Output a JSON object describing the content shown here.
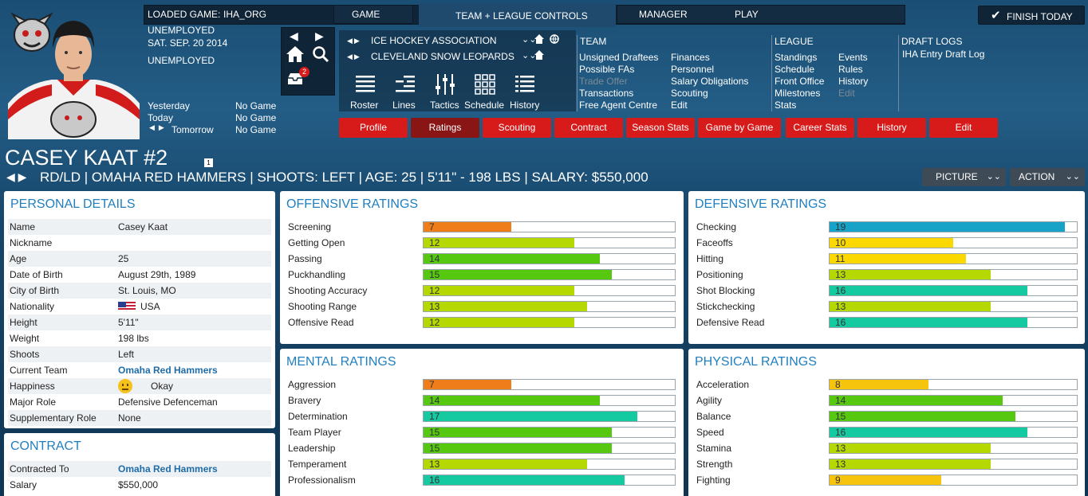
{
  "colors": {
    "accent": "#d71a1a",
    "active_tab": "#8a1515",
    "link": "#1e6ca8",
    "panel_title": "#1f7fbf",
    "orange": "#ef7d1a",
    "yellowgreen": "#b5d900",
    "green": "#55c80f",
    "teal": "#15c9a0",
    "blue": "#17a3c7",
    "yellow": "#fbd800",
    "amber": "#f6c40c"
  },
  "topbar": {
    "loaded_game_label": "LOADED GAME:",
    "loaded_game_value": "IHA_ORG",
    "game": "GAME",
    "team_league_controls": "TEAM + LEAGUE CONTROLS",
    "manager": "MANAGER",
    "play": "PLAY",
    "finish_today": "FINISH TODAY"
  },
  "manager_info": {
    "status1": "UNEMPLOYED",
    "date": "SAT. SEP. 20 2014",
    "status2": "UNEMPLOYED",
    "schedule": [
      {
        "label": "Yesterday",
        "value": "No Game"
      },
      {
        "label": "Today",
        "value": "No Game"
      },
      {
        "label": "Tomorrow",
        "value": "No Game"
      }
    ]
  },
  "quick_icons": {
    "inbox_badge": "2"
  },
  "leagues": {
    "league_name": "ICE HOCKEY ASSOCIATION",
    "team_name": "CLEVELAND SNOW LEOPARDS"
  },
  "toolbar": [
    "Roster",
    "Lines",
    "Tactics",
    "Schedule",
    "History"
  ],
  "menus": {
    "team_title": "TEAM",
    "team_col1": [
      "Unsigned Draftees",
      "Possible FAs",
      "Trade Offer",
      "Transactions",
      "Free Agent Centre"
    ],
    "team_col2": [
      "Finances",
      "Personnel",
      "Salary Obligations",
      "Scouting",
      "Edit"
    ],
    "league_title": "LEAGUE",
    "league_col1": [
      "Standings",
      "Schedule",
      "Front Office",
      "Milestones",
      "Stats"
    ],
    "league_col2": [
      "Events",
      "Rules",
      "History",
      "Edit"
    ],
    "draft_title": "DRAFT LOGS",
    "draft_items": [
      "IHA Entry Draft Log"
    ]
  },
  "tabs": [
    "Profile",
    "Ratings",
    "Scouting",
    "Contract",
    "Season Stats",
    "Game by Game",
    "Career Stats",
    "History",
    "Edit"
  ],
  "player": {
    "name": "CASEY KAAT #2",
    "badge": "1",
    "info": "RD/LD | OMAHA RED HAMMERS | SHOOTS: LEFT | AGE: 25 | 5'11\" - 198 LBS | SALARY: $550,000",
    "picture_btn": "PICTURE",
    "action_btn": "ACTION"
  },
  "personal_details": {
    "title": "PERSONAL DETAILS",
    "rows": [
      {
        "k": "Name",
        "v": "Casey Kaat"
      },
      {
        "k": "Nickname",
        "v": ""
      },
      {
        "k": "Age",
        "v": "25"
      },
      {
        "k": "Date of Birth",
        "v": "August 29th, 1989"
      },
      {
        "k": "City of Birth",
        "v": "St. Louis, MO"
      },
      {
        "k": "Nationality",
        "v": "USA"
      },
      {
        "k": "Height",
        "v": "5'11\""
      },
      {
        "k": "Weight",
        "v": "198 lbs"
      },
      {
        "k": "Shoots",
        "v": "Left"
      },
      {
        "k": "Current Team",
        "v": "Omaha Red Hammers"
      },
      {
        "k": "Happiness",
        "v": "Okay"
      },
      {
        "k": "Major Role",
        "v": "Defensive Defenceman"
      },
      {
        "k": "Supplementary Role",
        "v": "None"
      }
    ]
  },
  "contract": {
    "title": "CONTRACT",
    "rows": [
      {
        "k": "Contracted To",
        "v": "Omaha Red Hammers"
      },
      {
        "k": "Salary",
        "v": "$550,000"
      }
    ]
  },
  "offensive": {
    "title": "OFFENSIVE RATINGS",
    "max": 20,
    "items": [
      {
        "label": "Screening",
        "value": 7,
        "color": "orange"
      },
      {
        "label": "Getting Open",
        "value": 12,
        "color": "yellowgreen"
      },
      {
        "label": "Passing",
        "value": 14,
        "color": "green"
      },
      {
        "label": "Puckhandling",
        "value": 15,
        "color": "green"
      },
      {
        "label": "Shooting Accuracy",
        "value": 12,
        "color": "yellowgreen"
      },
      {
        "label": "Shooting Range",
        "value": 13,
        "color": "yellowgreen"
      },
      {
        "label": "Offensive Read",
        "value": 12,
        "color": "yellowgreen"
      }
    ]
  },
  "defensive": {
    "title": "DEFENSIVE RATINGS",
    "max": 20,
    "items": [
      {
        "label": "Checking",
        "value": 19,
        "color": "blue"
      },
      {
        "label": "Faceoffs",
        "value": 10,
        "color": "yellow"
      },
      {
        "label": "Hitting",
        "value": 11,
        "color": "yellow"
      },
      {
        "label": "Positioning",
        "value": 13,
        "color": "yellowgreen"
      },
      {
        "label": "Shot Blocking",
        "value": 16,
        "color": "teal"
      },
      {
        "label": "Stickchecking",
        "value": 13,
        "color": "yellowgreen"
      },
      {
        "label": "Defensive Read",
        "value": 16,
        "color": "teal"
      }
    ]
  },
  "mental": {
    "title": "MENTAL RATINGS",
    "max": 20,
    "items": [
      {
        "label": "Aggression",
        "value": 7,
        "color": "orange"
      },
      {
        "label": "Bravery",
        "value": 14,
        "color": "green"
      },
      {
        "label": "Determination",
        "value": 17,
        "color": "teal"
      },
      {
        "label": "Team Player",
        "value": 15,
        "color": "green"
      },
      {
        "label": "Leadership",
        "value": 15,
        "color": "green"
      },
      {
        "label": "Temperament",
        "value": 13,
        "color": "yellowgreen"
      },
      {
        "label": "Professionalism",
        "value": 16,
        "color": "teal"
      }
    ]
  },
  "physical": {
    "title": "PHYSICAL RATINGS",
    "max": 20,
    "items": [
      {
        "label": "Acceleration",
        "value": 8,
        "color": "amber"
      },
      {
        "label": "Agility",
        "value": 14,
        "color": "green"
      },
      {
        "label": "Balance",
        "value": 15,
        "color": "green"
      },
      {
        "label": "Speed",
        "value": 16,
        "color": "teal"
      },
      {
        "label": "Stamina",
        "value": 13,
        "color": "yellowgreen"
      },
      {
        "label": "Strength",
        "value": 13,
        "color": "yellowgreen"
      },
      {
        "label": "Fighting",
        "value": 9,
        "color": "amber"
      }
    ]
  }
}
